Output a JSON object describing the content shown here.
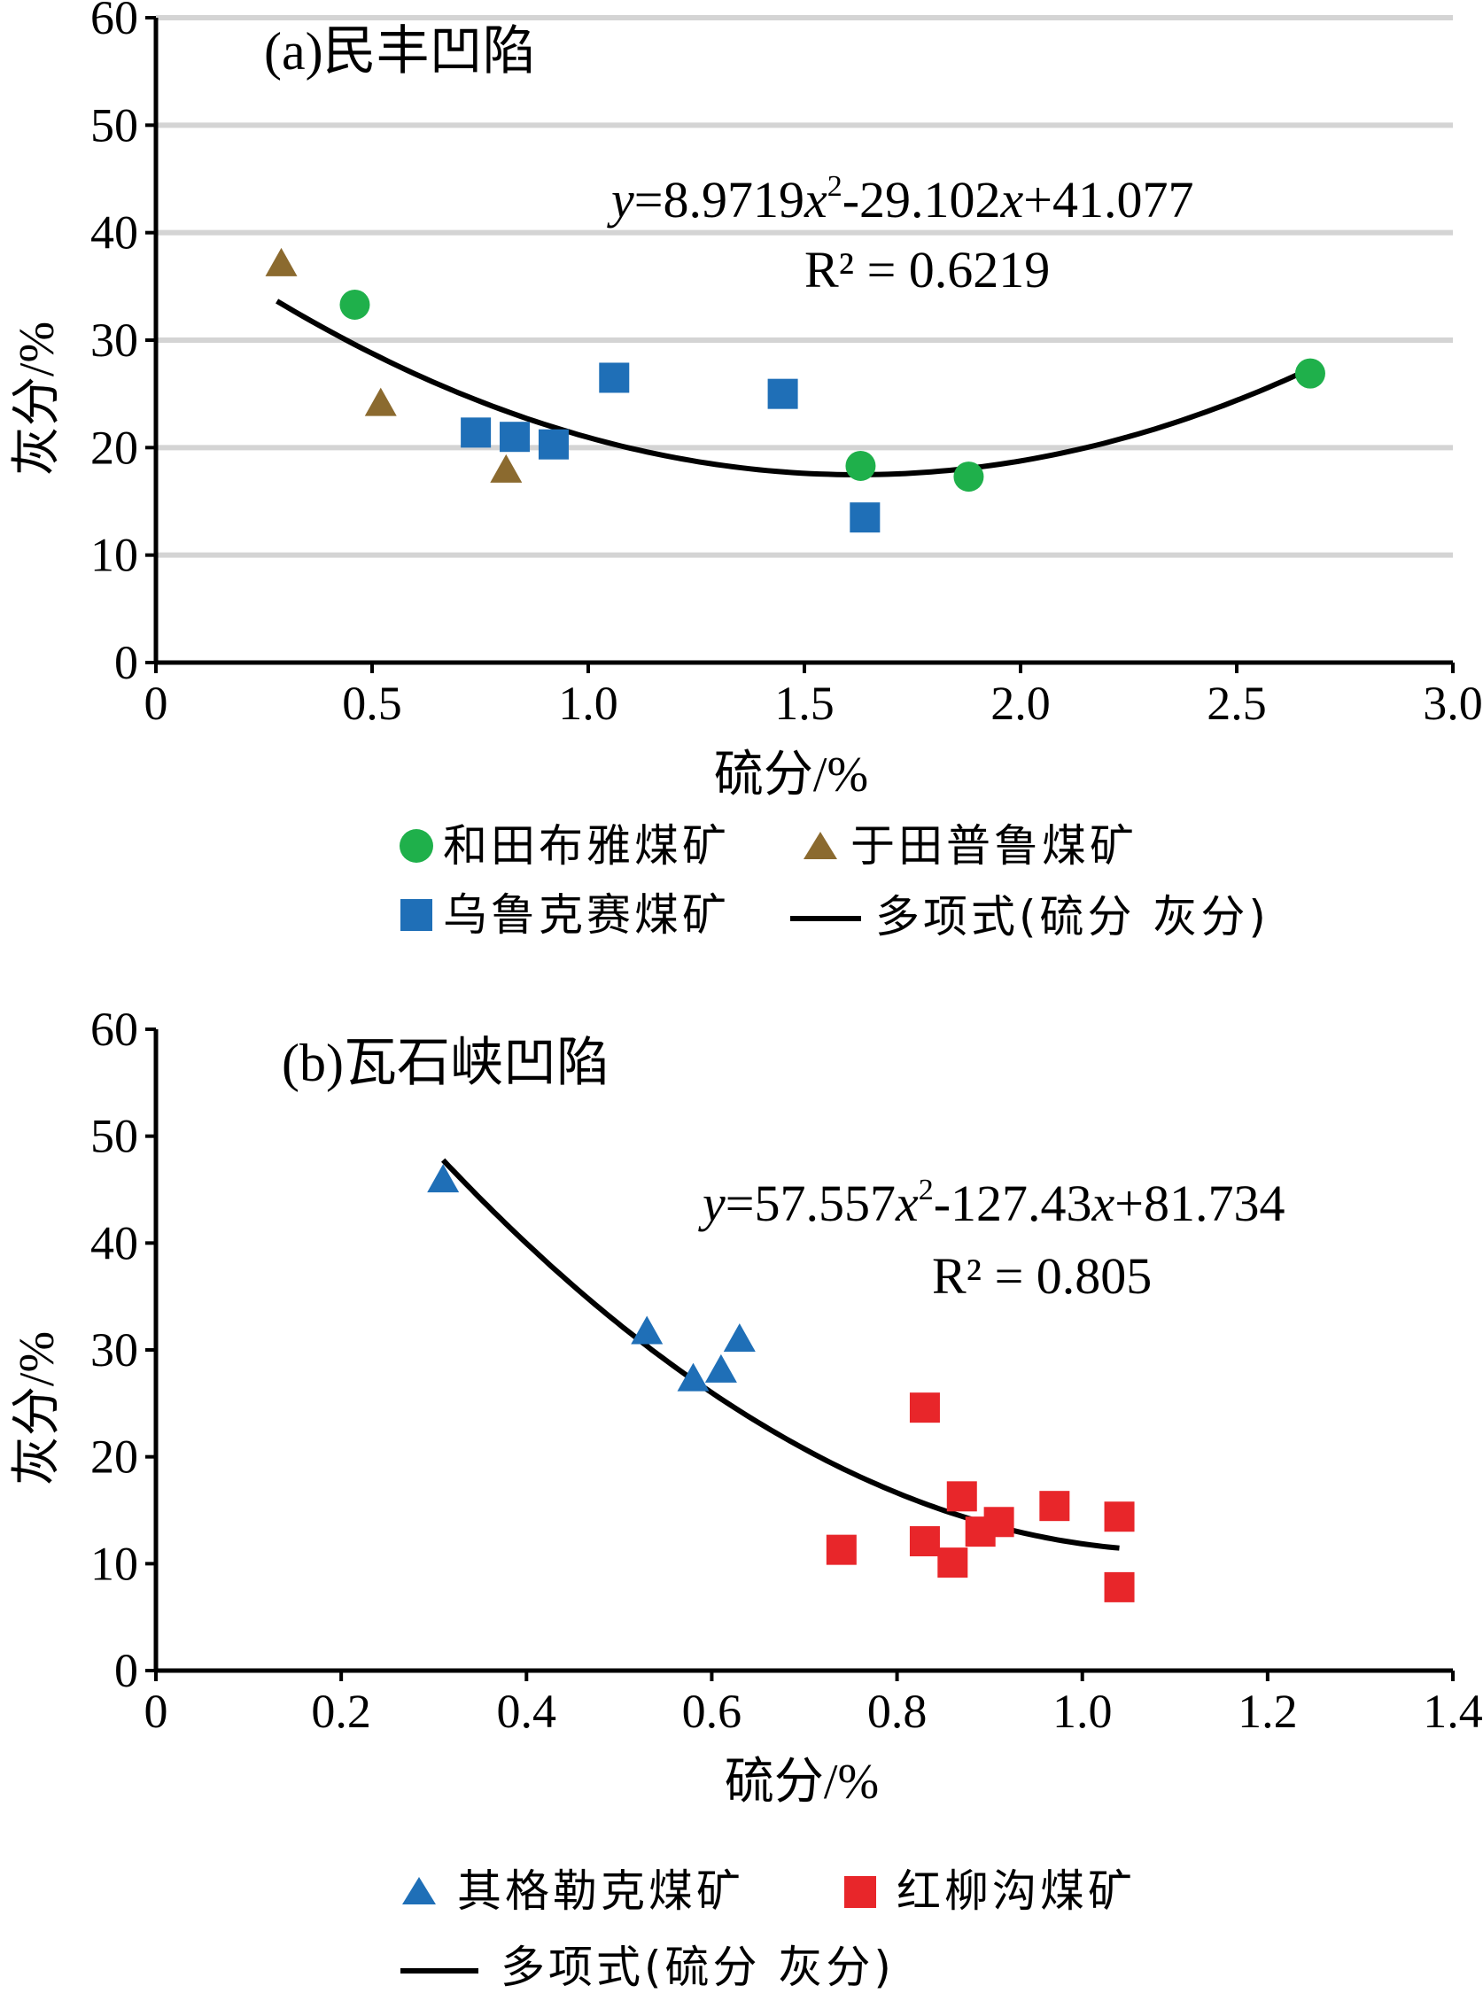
{
  "chart_data": [
    {
      "type": "scatter",
      "title": "(a)民丰凹陷",
      "xlabel": "硫分/%",
      "ylabel": "灰分/%",
      "xlim": [
        0,
        3.0
      ],
      "ylim": [
        0,
        60
      ],
      "xticks": [
        0,
        0.5,
        1.0,
        1.5,
        2.0,
        2.5,
        3.0
      ],
      "xtick_labels": [
        "0",
        "0.5",
        "1.0",
        "1.5",
        "2.0",
        "2.5",
        "3.0"
      ],
      "yticks": [
        0,
        10,
        20,
        30,
        40,
        50,
        60
      ],
      "ytick_labels": [
        "0",
        "10",
        "20",
        "30",
        "40",
        "50",
        "60"
      ],
      "grid": "horizontal",
      "series": [
        {
          "name": "和田布雅煤矿",
          "marker": "circle",
          "color": "#1fb04b",
          "points": [
            [
              0.46,
              33.3
            ],
            [
              1.63,
              18.3
            ],
            [
              1.88,
              17.3
            ],
            [
              2.67,
              26.9
            ]
          ]
        },
        {
          "name": "于田普鲁煤矿",
          "marker": "triangle",
          "color": "#8b6a2f",
          "points": [
            [
              0.29,
              37.0
            ],
            [
              0.52,
              24.0
            ],
            [
              0.81,
              17.8
            ]
          ]
        },
        {
          "name": "乌鲁克赛煤矿",
          "marker": "square",
          "color": "#1f6fb7",
          "points": [
            [
              0.74,
              21.4
            ],
            [
              0.83,
              21.0
            ],
            [
              0.92,
              20.3
            ],
            [
              1.06,
              26.5
            ],
            [
              1.45,
              25.0
            ],
            [
              1.64,
              13.5
            ]
          ]
        }
      ],
      "fit": {
        "name": "多项式(硫分 灰分)",
        "coefficients": [
          8.9719,
          -29.102,
          41.077
        ],
        "x_range": [
          0.28,
          2.67
        ],
        "color": "#000000"
      },
      "equation": {
        "y_part": "y",
        "eq1": "=8.9719",
        "x1": "x",
        "sup": "2",
        "eq2": "-29.102",
        "x2": "x",
        "eq3": "+41.077"
      },
      "r2_label": "R² = 0.6219",
      "legend": {
        "items": [
          "和田布雅煤矿",
          "于田普鲁煤矿",
          "乌鲁克赛煤矿",
          "多项式(硫分 灰分)"
        ]
      }
    },
    {
      "type": "scatter",
      "title": "(b)瓦石峡凹陷",
      "xlabel": "硫分/%",
      "ylabel": "灰分/%",
      "xlim": [
        0,
        1.4
      ],
      "ylim": [
        0,
        60
      ],
      "xticks": [
        0,
        0.2,
        0.4,
        0.6,
        0.8,
        1.0,
        1.2,
        1.4
      ],
      "xtick_labels": [
        "0",
        "0.2",
        "0.4",
        "0.6",
        "0.8",
        "1.0",
        "1.2",
        "1.4"
      ],
      "yticks": [
        0,
        10,
        20,
        30,
        40,
        50,
        60
      ],
      "ytick_labels": [
        "0",
        "10",
        "20",
        "30",
        "40",
        "50",
        "60"
      ],
      "grid": "none",
      "series": [
        {
          "name": "其格勒克煤矿",
          "marker": "triangle",
          "color": "#1f6fb7",
          "points": [
            [
              0.31,
              45.8
            ],
            [
              0.53,
              31.6
            ],
            [
              0.58,
              27.2
            ],
            [
              0.61,
              28.0
            ],
            [
              0.63,
              30.9
            ]
          ]
        },
        {
          "name": "红柳沟煤矿",
          "marker": "square",
          "color": "#e8262a",
          "points": [
            [
              0.74,
              11.3
            ],
            [
              0.83,
              24.6
            ],
            [
              0.83,
              12.1
            ],
            [
              0.86,
              10.1
            ],
            [
              0.87,
              16.3
            ],
            [
              0.89,
              13.0
            ],
            [
              0.91,
              13.9
            ],
            [
              0.97,
              15.4
            ],
            [
              1.04,
              14.4
            ],
            [
              1.04,
              7.8
            ]
          ]
        }
      ],
      "fit": {
        "name": "多项式(硫分 灰分)",
        "coefficients": [
          57.557,
          -127.43,
          81.734
        ],
        "x_range": [
          0.31,
          1.04
        ],
        "color": "#000000"
      },
      "equation": {
        "y_part": "y",
        "eq1": "=57.557",
        "x1": "x",
        "sup": "2",
        "eq2": "-127.43",
        "x2": "x",
        "eq3": "+81.734"
      },
      "r2_label": "R² = 0.805",
      "legend": {
        "items": [
          "其格勒克煤矿",
          "红柳沟煤矿",
          "多项式(硫分 灰分)"
        ]
      }
    }
  ]
}
